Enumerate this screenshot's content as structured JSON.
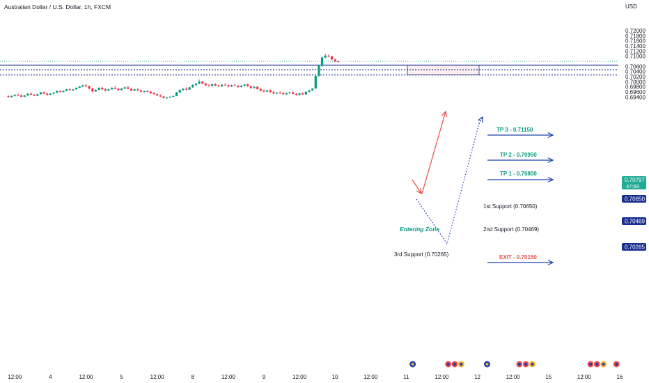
{
  "header": {
    "title": "Australian Dollar / U.S. Dollar, 1h, FXCM",
    "currency": "USD"
  },
  "chart_data": {
    "type": "candlestick",
    "title": "Australian Dollar / U.S. Dollar, 1h, FXCM",
    "ylabel": "USD",
    "ylim": [
      0.6932,
      0.722
    ],
    "y_ticks": [
      "0.72000",
      "0.71800",
      "0.71600",
      "0.71400",
      "0.71200",
      "0.71000",
      "0.70600",
      "0.70400",
      "0.70200",
      "0.70000",
      "0.69800",
      "0.69600",
      "0.69400"
    ],
    "x_ticks": [
      {
        "label": "12:00",
        "i": 2
      },
      {
        "label": "4",
        "i": 13
      },
      {
        "label": "12:00",
        "i": 24
      },
      {
        "label": "5",
        "i": 35
      },
      {
        "label": "12:00",
        "i": 46
      },
      {
        "label": "8",
        "i": 57
      },
      {
        "label": "12:00",
        "i": 68
      },
      {
        "label": "9",
        "i": 79
      },
      {
        "label": "12:00",
        "i": 90
      },
      {
        "label": "10",
        "i": 101
      },
      {
        "label": "12:00",
        "i": 112
      },
      {
        "label": "11",
        "i": 123
      },
      {
        "label": "12:00",
        "i": 134
      },
      {
        "label": "12",
        "i": 145
      },
      {
        "label": "12:00",
        "i": 156
      },
      {
        "label": "15",
        "i": 167
      },
      {
        "label": "12:00",
        "i": 178
      },
      {
        "label": "16",
        "i": 189
      }
    ],
    "candles": [
      [
        0.6943,
        0.6947,
        0.6937,
        0.694
      ],
      [
        0.694,
        0.6946,
        0.6938,
        0.6944
      ],
      [
        0.6944,
        0.6951,
        0.6942,
        0.6948
      ],
      [
        0.6948,
        0.6953,
        0.6944,
        0.6946
      ],
      [
        0.6946,
        0.695,
        0.6939,
        0.6941
      ],
      [
        0.6941,
        0.6948,
        0.694,
        0.6946
      ],
      [
        0.6946,
        0.6955,
        0.6945,
        0.6953
      ],
      [
        0.6953,
        0.6957,
        0.6947,
        0.6949
      ],
      [
        0.6949,
        0.6952,
        0.6943,
        0.6945
      ],
      [
        0.6945,
        0.6953,
        0.6944,
        0.6951
      ],
      [
        0.6951,
        0.696,
        0.695,
        0.6958
      ],
      [
        0.6958,
        0.6962,
        0.6951,
        0.6953
      ],
      [
        0.6953,
        0.6958,
        0.6946,
        0.6948
      ],
      [
        0.6948,
        0.6955,
        0.6947,
        0.6953
      ],
      [
        0.6953,
        0.696,
        0.6951,
        0.6957
      ],
      [
        0.6957,
        0.6965,
        0.6955,
        0.6963
      ],
      [
        0.6963,
        0.6968,
        0.6958,
        0.696
      ],
      [
        0.696,
        0.6966,
        0.6957,
        0.6964
      ],
      [
        0.6964,
        0.6972,
        0.6962,
        0.697
      ],
      [
        0.697,
        0.6974,
        0.6965,
        0.6967
      ],
      [
        0.6967,
        0.6972,
        0.6963,
        0.697
      ],
      [
        0.697,
        0.6978,
        0.6968,
        0.6976
      ],
      [
        0.6976,
        0.6983,
        0.6974,
        0.6981
      ],
      [
        0.6981,
        0.6988,
        0.6979,
        0.6986
      ],
      [
        0.6986,
        0.6991,
        0.698,
        0.6982
      ],
      [
        0.6982,
        0.6985,
        0.697,
        0.6973
      ],
      [
        0.6973,
        0.6976,
        0.6958,
        0.6962
      ],
      [
        0.6962,
        0.697,
        0.696,
        0.6968
      ],
      [
        0.6968,
        0.6978,
        0.6966,
        0.6976
      ],
      [
        0.6976,
        0.698,
        0.6968,
        0.697
      ],
      [
        0.697,
        0.6974,
        0.6962,
        0.6965
      ],
      [
        0.6965,
        0.6972,
        0.6963,
        0.697
      ],
      [
        0.697,
        0.6978,
        0.6969,
        0.6976
      ],
      [
        0.6976,
        0.6983,
        0.697,
        0.6972
      ],
      [
        0.6972,
        0.6977,
        0.6964,
        0.6967
      ],
      [
        0.6967,
        0.6975,
        0.6966,
        0.6973
      ],
      [
        0.6973,
        0.698,
        0.6971,
        0.6978
      ],
      [
        0.6978,
        0.6983,
        0.697,
        0.6972
      ],
      [
        0.6972,
        0.6975,
        0.6962,
        0.6965
      ],
      [
        0.6965,
        0.6972,
        0.6963,
        0.697
      ],
      [
        0.697,
        0.6975,
        0.6964,
        0.6966
      ],
      [
        0.6966,
        0.6969,
        0.6958,
        0.6961
      ],
      [
        0.6961,
        0.6966,
        0.6956,
        0.6963
      ],
      [
        0.6963,
        0.6968,
        0.6959,
        0.6961
      ],
      [
        0.6961,
        0.6964,
        0.6952,
        0.6955
      ],
      [
        0.6955,
        0.696,
        0.6949,
        0.6951
      ],
      [
        0.6951,
        0.6955,
        0.6944,
        0.6946
      ],
      [
        0.6946,
        0.695,
        0.694,
        0.6942
      ],
      [
        0.6942,
        0.6944,
        0.6934,
        0.6936
      ],
      [
        0.6935,
        0.694,
        0.6932,
        0.6938
      ],
      [
        0.6938,
        0.6943,
        0.6936,
        0.6941
      ],
      [
        0.6941,
        0.6946,
        0.6939,
        0.6944
      ],
      [
        0.6944,
        0.696,
        0.6943,
        0.6958
      ],
      [
        0.6958,
        0.697,
        0.6955,
        0.6968
      ],
      [
        0.6968,
        0.6975,
        0.6963,
        0.6972
      ],
      [
        0.6972,
        0.6978,
        0.6966,
        0.6969
      ],
      [
        0.6969,
        0.698,
        0.6968,
        0.6978
      ],
      [
        0.6978,
        0.699,
        0.6976,
        0.6987
      ],
      [
        0.6987,
        0.6995,
        0.6983,
        0.6992
      ],
      [
        0.6992,
        0.7008,
        0.699,
        0.7
      ],
      [
        0.7,
        0.7003,
        0.699,
        0.6993
      ],
      [
        0.6993,
        0.6996,
        0.6983,
        0.6986
      ],
      [
        0.6986,
        0.699,
        0.698,
        0.6984
      ],
      [
        0.6984,
        0.6992,
        0.6982,
        0.699
      ],
      [
        0.699,
        0.6994,
        0.6982,
        0.6985
      ],
      [
        0.6985,
        0.6988,
        0.6979,
        0.6982
      ],
      [
        0.6982,
        0.699,
        0.698,
        0.6988
      ],
      [
        0.6988,
        0.6994,
        0.6984,
        0.6986
      ],
      [
        0.6986,
        0.6989,
        0.6978,
        0.6981
      ],
      [
        0.6981,
        0.6988,
        0.6979,
        0.6986
      ],
      [
        0.6986,
        0.6992,
        0.6983,
        0.6984
      ],
      [
        0.6984,
        0.6987,
        0.6976,
        0.6979
      ],
      [
        0.6979,
        0.6986,
        0.6977,
        0.6984
      ],
      [
        0.6984,
        0.6991,
        0.6982,
        0.6989
      ],
      [
        0.6989,
        0.6993,
        0.698,
        0.6982
      ],
      [
        0.6982,
        0.6985,
        0.6972,
        0.6975
      ],
      [
        0.6975,
        0.6982,
        0.6973,
        0.698
      ],
      [
        0.698,
        0.6983,
        0.6969,
        0.6971
      ],
      [
        0.6971,
        0.6976,
        0.6962,
        0.6965
      ],
      [
        0.6965,
        0.697,
        0.6958,
        0.6961
      ],
      [
        0.6961,
        0.6968,
        0.6959,
        0.6966
      ],
      [
        0.6966,
        0.697,
        0.6957,
        0.6959
      ],
      [
        0.6959,
        0.6964,
        0.6951,
        0.6954
      ],
      [
        0.6954,
        0.696,
        0.695,
        0.6957
      ],
      [
        0.6957,
        0.6962,
        0.6952,
        0.6955
      ],
      [
        0.6955,
        0.696,
        0.6949,
        0.6951
      ],
      [
        0.6951,
        0.6957,
        0.6948,
        0.6955
      ],
      [
        0.6955,
        0.6961,
        0.6953,
        0.6958
      ],
      [
        0.6958,
        0.6962,
        0.695,
        0.6952
      ],
      [
        0.6952,
        0.6956,
        0.6946,
        0.6948
      ],
      [
        0.6948,
        0.6956,
        0.6946,
        0.6954
      ],
      [
        0.6954,
        0.6958,
        0.6948,
        0.695
      ],
      [
        0.695,
        0.6962,
        0.6949,
        0.696
      ],
      [
        0.696,
        0.6968,
        0.6958,
        0.6966
      ],
      [
        0.6966,
        0.6975,
        0.6965,
        0.6973
      ],
      [
        0.6973,
        0.7028,
        0.6972,
        0.7023
      ],
      [
        0.7023,
        0.7066,
        0.7019,
        0.7062
      ],
      [
        0.7062,
        0.7099,
        0.7058,
        0.7095
      ],
      [
        0.7095,
        0.7109,
        0.709,
        0.7102
      ],
      [
        0.7102,
        0.7106,
        0.7095,
        0.7099
      ],
      [
        0.7099,
        0.7102,
        0.7084,
        0.7087
      ],
      [
        0.7087,
        0.709,
        0.7076,
        0.708
      ],
      [
        0.708,
        0.7083,
        0.7075,
        0.7079
      ]
    ],
    "levels": {
      "support_1": 0.7065,
      "support_2": 0.70469,
      "support_3": 0.70265,
      "current_price": 0.70797
    }
  },
  "price_labels": {
    "current": "0.70797",
    "countdown": "47:59",
    "s1": "0.70650",
    "s2": "0.70469",
    "s3": "0.70265"
  },
  "annotations": {
    "tp3": "TP 3 - 0.71150",
    "tp2": "TP 2 - 0.70950",
    "tp1": "TP 1 - 0.70800",
    "support_1": "1st Support (0.70650)",
    "support_2": "2nd Support (0.70469)",
    "support_3": "3rd Support (0.70265)",
    "exit": "EXIT - 0.70150",
    "zone": "Entering Zone"
  },
  "colors": {
    "up": "#089981",
    "down": "#f23645",
    "level": "#1a2f8f",
    "tp_text": "#089981",
    "support_text": "#e84c4c",
    "current_badge": "#22ab94",
    "zone_top": "#e5f7f5",
    "zone_bottom": "#fdeef0"
  },
  "events": [
    {
      "icon": "aud-flag-icon",
      "i": 125
    },
    {
      "icon": "usd-flag-icon",
      "i": 136
    },
    {
      "icon": "usd-flag-icon",
      "i": 138
    },
    {
      "icon": "eur-flag-icon",
      "i": 140
    },
    {
      "icon": "aud-flag-icon",
      "i": 148
    },
    {
      "icon": "usd-flag-icon",
      "i": 158
    },
    {
      "icon": "usd-flag-icon",
      "i": 160
    },
    {
      "icon": "eur-flag-icon",
      "i": 162
    },
    {
      "icon": "usd-flag-icon",
      "i": 180
    },
    {
      "icon": "usd-flag-icon",
      "i": 182
    },
    {
      "icon": "eur-flag-icon",
      "i": 184
    },
    {
      "icon": "usd-flag-icon",
      "i": 188
    }
  ]
}
